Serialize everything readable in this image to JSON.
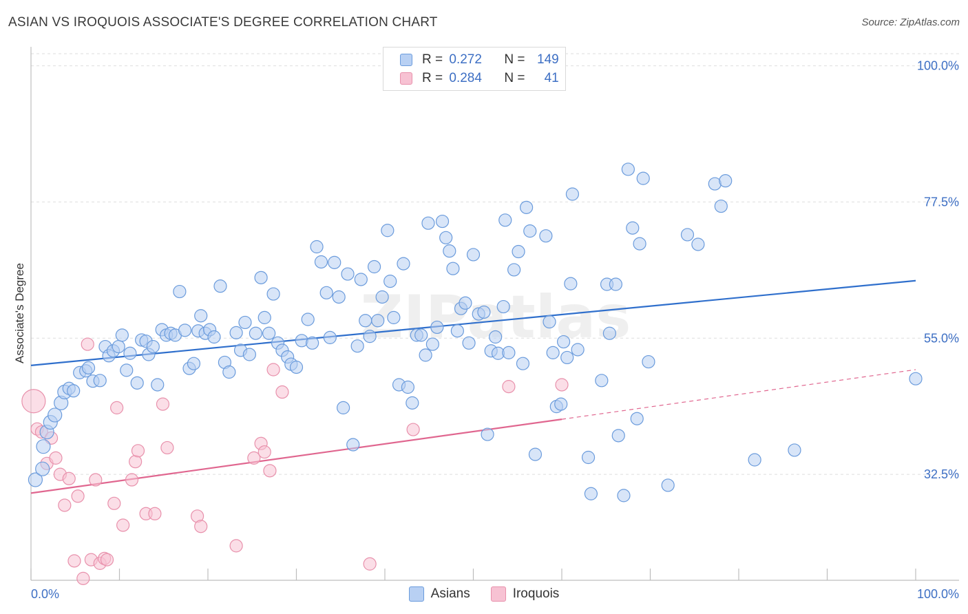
{
  "title": "ASIAN VS IROQUOIS ASSOCIATE'S DEGREE CORRELATION CHART",
  "source": "Source: ZipAtlas.com",
  "watermark": "ZIPatlas",
  "legend": {
    "rows": [
      {
        "r_label": "R = ",
        "r_value": "0.272",
        "n_label": "N = ",
        "n_value": "149"
      },
      {
        "r_label": "R = ",
        "r_value": "0.284",
        "n_label": "N = ",
        "n_value": "41"
      }
    ]
  },
  "colors": {
    "asian_fill": "#b8d0f3",
    "asian_stroke": "#6a9bdc",
    "asian_line": "#2f6fcc",
    "iroquois_fill": "#f7c2d3",
    "iroquois_stroke": "#e890ab",
    "iroquois_line": "#e0668f",
    "axis_label": "#3d6fc4",
    "grid": "#dddddd"
  },
  "chart_data": {
    "type": "scatter",
    "ylabel": "Associate's Degree",
    "xlim": [
      0,
      100
    ],
    "ylim": [
      15,
      102
    ],
    "x_tick_labels": [
      "0.0%",
      "100.0%"
    ],
    "y_ticks": [
      {
        "value": 100,
        "label": "100.0%"
      },
      {
        "value": 77.5,
        "label": "77.5%"
      },
      {
        "value": 55,
        "label": "55.0%"
      },
      {
        "value": 32.5,
        "label": "32.5%"
      }
    ],
    "grid": true,
    "legend_position": "top-center",
    "series": [
      {
        "name": "Asians",
        "trend": {
          "x": [
            0,
            100
          ],
          "y": [
            50.5,
            64.5
          ]
        },
        "points": [
          [
            0.5,
            31.6
          ],
          [
            1.3,
            33.4
          ],
          [
            1.4,
            37.1
          ],
          [
            1.8,
            39.5
          ],
          [
            2.2,
            41.1
          ],
          [
            2.7,
            42.3
          ],
          [
            3.4,
            44.3
          ],
          [
            3.8,
            46.1
          ],
          [
            4.3,
            46.7
          ],
          [
            4.8,
            46.3
          ],
          [
            5.5,
            49.3
          ],
          [
            6.2,
            49.6
          ],
          [
            6.5,
            50.1
          ],
          [
            7.0,
            47.9
          ],
          [
            7.8,
            48.0
          ],
          [
            8.4,
            53.6
          ],
          [
            8.8,
            52.1
          ],
          [
            9.3,
            52.9
          ],
          [
            9.9,
            53.6
          ],
          [
            10.3,
            55.5
          ],
          [
            10.8,
            49.7
          ],
          [
            11.2,
            52.5
          ],
          [
            12.0,
            47.6
          ],
          [
            12.5,
            54.7
          ],
          [
            13.0,
            54.5
          ],
          [
            13.3,
            52.3
          ],
          [
            13.8,
            53.6
          ],
          [
            14.3,
            47.3
          ],
          [
            14.8,
            56.4
          ],
          [
            15.3,
            55.5
          ],
          [
            15.8,
            55.8
          ],
          [
            16.3,
            55.5
          ],
          [
            16.8,
            62.7
          ],
          [
            17.4,
            56.3
          ],
          [
            17.9,
            50.0
          ],
          [
            18.4,
            50.8
          ],
          [
            18.9,
            56.2
          ],
          [
            19.2,
            58.7
          ],
          [
            19.7,
            55.8
          ],
          [
            20.2,
            56.4
          ],
          [
            20.7,
            55.2
          ],
          [
            21.4,
            63.6
          ],
          [
            21.9,
            51.0
          ],
          [
            22.4,
            49.4
          ],
          [
            23.2,
            55.9
          ],
          [
            23.7,
            53.0
          ],
          [
            24.2,
            57.6
          ],
          [
            24.7,
            52.3
          ],
          [
            25.4,
            55.8
          ],
          [
            26.0,
            65.0
          ],
          [
            26.4,
            58.4
          ],
          [
            26.9,
            55.8
          ],
          [
            27.4,
            62.3
          ],
          [
            27.9,
            54.2
          ],
          [
            28.4,
            53.0
          ],
          [
            29.0,
            51.9
          ],
          [
            29.4,
            50.7
          ],
          [
            30.0,
            50.2
          ],
          [
            30.6,
            54.6
          ],
          [
            31.3,
            58.1
          ],
          [
            31.8,
            54.2
          ],
          [
            32.3,
            70.1
          ],
          [
            32.8,
            67.6
          ],
          [
            33.4,
            62.5
          ],
          [
            33.8,
            55.1
          ],
          [
            34.3,
            67.5
          ],
          [
            34.8,
            61.8
          ],
          [
            35.3,
            43.5
          ],
          [
            35.8,
            65.6
          ],
          [
            36.4,
            37.4
          ],
          [
            36.9,
            53.7
          ],
          [
            37.3,
            64.7
          ],
          [
            37.8,
            57.9
          ],
          [
            38.3,
            55.3
          ],
          [
            38.8,
            66.8
          ],
          [
            39.2,
            57.9
          ],
          [
            39.7,
            61.8
          ],
          [
            40.3,
            72.8
          ],
          [
            40.6,
            64.4
          ],
          [
            41.0,
            58.4
          ],
          [
            41.6,
            47.3
          ],
          [
            42.1,
            67.3
          ],
          [
            42.6,
            46.9
          ],
          [
            43.1,
            44.3
          ],
          [
            43.6,
            55.5
          ],
          [
            44.1,
            55.5
          ],
          [
            44.6,
            52.2
          ],
          [
            44.9,
            74.0
          ],
          [
            45.4,
            54.0
          ],
          [
            45.9,
            56.8
          ],
          [
            46.5,
            74.3
          ],
          [
            46.9,
            71.6
          ],
          [
            47.3,
            69.4
          ],
          [
            47.7,
            66.5
          ],
          [
            48.2,
            56.2
          ],
          [
            48.6,
            59.9
          ],
          [
            49.1,
            60.8
          ],
          [
            49.5,
            54.2
          ],
          [
            50.0,
            68.8
          ],
          [
            50.6,
            59.0
          ],
          [
            51.2,
            59.3
          ],
          [
            51.6,
            39.1
          ],
          [
            52.0,
            52.9
          ],
          [
            52.5,
            55.2
          ],
          [
            52.8,
            52.5
          ],
          [
            53.4,
            60.2
          ],
          [
            53.6,
            74.5
          ],
          [
            54.0,
            52.6
          ],
          [
            54.6,
            66.3
          ],
          [
            55.1,
            69.3
          ],
          [
            55.6,
            50.8
          ],
          [
            56.0,
            76.6
          ],
          [
            56.4,
            72.7
          ],
          [
            57.0,
            35.8
          ],
          [
            58.2,
            71.9
          ],
          [
            58.6,
            57.7
          ],
          [
            59.0,
            52.6
          ],
          [
            59.4,
            43.7
          ],
          [
            59.9,
            44.1
          ],
          [
            60.2,
            54.4
          ],
          [
            60.6,
            51.8
          ],
          [
            61.0,
            64.0
          ],
          [
            61.2,
            78.8
          ],
          [
            61.8,
            53.1
          ],
          [
            63.0,
            35.3
          ],
          [
            63.3,
            29.3
          ],
          [
            64.5,
            48.0
          ],
          [
            65.1,
            63.9
          ],
          [
            65.4,
            55.8
          ],
          [
            66.1,
            63.9
          ],
          [
            66.4,
            38.9
          ],
          [
            67.0,
            29.0
          ],
          [
            67.5,
            82.9
          ],
          [
            68.0,
            73.2
          ],
          [
            68.5,
            41.7
          ],
          [
            68.8,
            70.6
          ],
          [
            69.2,
            81.4
          ],
          [
            69.8,
            51.1
          ],
          [
            72.0,
            30.7
          ],
          [
            74.2,
            72.1
          ],
          [
            75.4,
            70.5
          ],
          [
            77.3,
            80.5
          ],
          [
            78.0,
            76.8
          ],
          [
            78.5,
            81.0
          ],
          [
            81.8,
            34.9
          ],
          [
            86.3,
            36.5
          ],
          [
            100.0,
            48.3
          ]
        ]
      },
      {
        "name": "Iroquois",
        "trend": {
          "x": [
            0,
            60
          ],
          "y": [
            29.4,
            41.6
          ]
        },
        "trend_dashed": {
          "x": [
            60,
            100
          ],
          "y": [
            41.6,
            49.8
          ]
        },
        "points": [
          [
            0.3,
            44.6
          ],
          [
            0.7,
            40.0
          ],
          [
            1.2,
            39.5
          ],
          [
            1.8,
            34.3
          ],
          [
            2.3,
            38.5
          ],
          [
            2.8,
            35.2
          ],
          [
            3.3,
            32.5
          ],
          [
            3.8,
            27.4
          ],
          [
            4.3,
            31.8
          ],
          [
            4.9,
            18.2
          ],
          [
            5.3,
            28.9
          ],
          [
            5.9,
            15.3
          ],
          [
            6.4,
            54.0
          ],
          [
            6.8,
            18.4
          ],
          [
            7.3,
            31.6
          ],
          [
            7.8,
            17.8
          ],
          [
            8.3,
            18.6
          ],
          [
            8.6,
            18.4
          ],
          [
            9.4,
            27.7
          ],
          [
            9.7,
            43.5
          ],
          [
            10.4,
            24.1
          ],
          [
            11.4,
            31.6
          ],
          [
            11.8,
            34.6
          ],
          [
            12.1,
            36.4
          ],
          [
            13.0,
            26.0
          ],
          [
            14.0,
            26.0
          ],
          [
            14.9,
            44.1
          ],
          [
            15.4,
            36.9
          ],
          [
            18.8,
            25.6
          ],
          [
            19.2,
            23.9
          ],
          [
            23.2,
            20.7
          ],
          [
            25.2,
            35.2
          ],
          [
            26.0,
            37.6
          ],
          [
            26.4,
            36.2
          ],
          [
            27.0,
            33.1
          ],
          [
            27.4,
            49.8
          ],
          [
            28.4,
            46.1
          ],
          [
            38.3,
            17.7
          ],
          [
            43.2,
            39.9
          ],
          [
            54.0,
            47.0
          ],
          [
            60.0,
            47.3
          ]
        ]
      }
    ]
  },
  "bottom_legend": [
    {
      "label": "Asians"
    },
    {
      "label": "Iroquois"
    }
  ]
}
